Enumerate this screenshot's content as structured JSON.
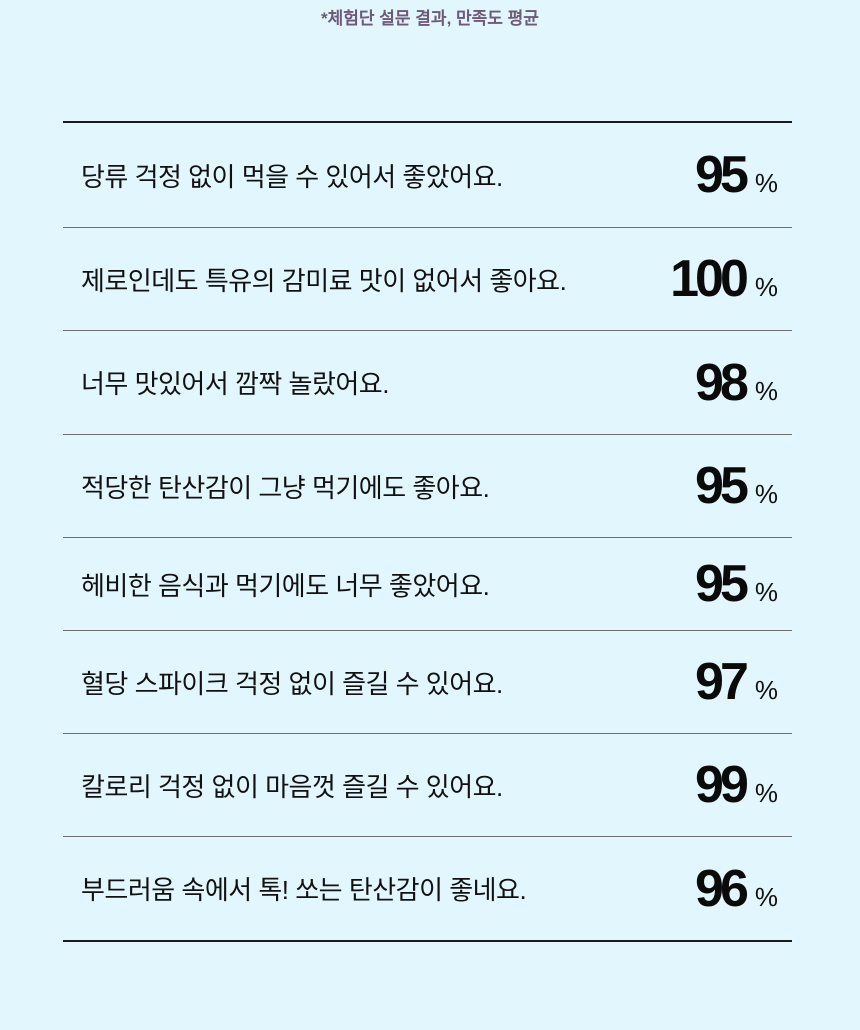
{
  "note": "*체험단 설문 결과, 만족도 평균",
  "rows": [
    {
      "label": "당류 걱정 없이 먹을 수 있어서 좋았어요.",
      "value": "95",
      "unit": "%"
    },
    {
      "label": "제로인데도 특유의 감미료 맛이 없어서 좋아요.",
      "value": "100",
      "unit": "%"
    },
    {
      "label": "너무 맛있어서 깜짝 놀랐어요.",
      "value": "98",
      "unit": "%"
    },
    {
      "label": "적당한 탄산감이 그냥 먹기에도 좋아요.",
      "value": "95",
      "unit": "%"
    },
    {
      "label": "헤비한 음식과 먹기에도 너무 좋았어요.",
      "value": "95",
      "unit": "%"
    },
    {
      "label": "혈당 스파이크 걱정 없이 즐길 수 있어요.",
      "value": "97",
      "unit": "%"
    },
    {
      "label": "칼로리 걱정 없이 마음껏 즐길 수 있어요.",
      "value": "99",
      "unit": "%"
    },
    {
      "label": "부드러움 속에서 톡! 쏘는 탄산감이 좋네요.",
      "value": "96",
      "unit": "%"
    }
  ]
}
